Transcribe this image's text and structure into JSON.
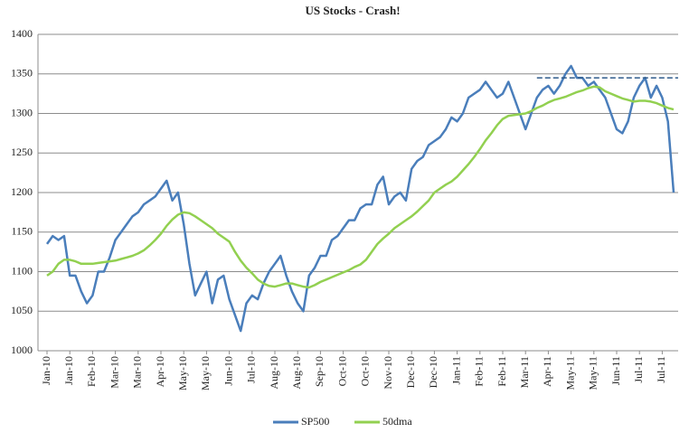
{
  "chart_data": {
    "type": "line",
    "title": "US Stocks  - Crash!",
    "categories": [
      "Jan-10",
      null,
      null,
      null,
      "Jan-10",
      null,
      null,
      null,
      "Feb-10",
      null,
      null,
      null,
      "Mar-10",
      null,
      null,
      null,
      "Mar-10",
      null,
      null,
      null,
      "Apr-10",
      null,
      null,
      null,
      "May-10",
      null,
      null,
      null,
      "May-10",
      null,
      null,
      null,
      "Jun-10",
      null,
      null,
      null,
      "Jul-10",
      null,
      null,
      null,
      "Aug-10",
      null,
      null,
      null,
      "Aug-10",
      null,
      null,
      null,
      "Sep-10",
      null,
      null,
      null,
      "Oct-10",
      null,
      null,
      null,
      "Oct-10",
      null,
      null,
      null,
      "Nov-10",
      null,
      null,
      null,
      "Dec-10",
      null,
      null,
      null,
      "Dec-10",
      null,
      null,
      null,
      "Jan-11",
      null,
      null,
      null,
      "Feb-11",
      null,
      null,
      null,
      "Feb-11",
      null,
      null,
      null,
      "Mar-11",
      null,
      null,
      null,
      "Apr-11",
      null,
      null,
      null,
      "May-11",
      null,
      null,
      null,
      "May-11",
      null,
      null,
      null,
      "Jun-11",
      null,
      null,
      null,
      "Jul-11",
      null,
      null,
      null,
      "Jul-11",
      null,
      null
    ],
    "series": [
      {
        "name": "SP500",
        "color": "#4a7ebb",
        "values": [
          1135,
          1145,
          1140,
          1145,
          1095,
          1095,
          1075,
          1060,
          1070,
          1100,
          1100,
          1118,
          1140,
          1150,
          1160,
          1170,
          1175,
          1185,
          1190,
          1195,
          1205,
          1215,
          1190,
          1200,
          1160,
          1110,
          1070,
          1085,
          1100,
          1060,
          1090,
          1095,
          1065,
          1045,
          1025,
          1060,
          1070,
          1065,
          1085,
          1100,
          1110,
          1120,
          1095,
          1075,
          1060,
          1050,
          1095,
          1105,
          1120,
          1120,
          1140,
          1145,
          1155,
          1165,
          1165,
          1180,
          1185,
          1185,
          1210,
          1220,
          1185,
          1195,
          1200,
          1190,
          1230,
          1240,
          1245,
          1260,
          1265,
          1270,
          1280,
          1295,
          1290,
          1300,
          1320,
          1325,
          1330,
          1340,
          1330,
          1320,
          1325,
          1340,
          1320,
          1300,
          1280,
          1300,
          1320,
          1330,
          1335,
          1325,
          1335,
          1350,
          1360,
          1345,
          1345,
          1335,
          1340,
          1330,
          1320,
          1300,
          1280,
          1275,
          1290,
          1320,
          1335,
          1345,
          1320,
          1335,
          1320,
          1290,
          1200
        ]
      },
      {
        "name": "50dma",
        "color": "#92d050",
        "values": [
          1095,
          1100,
          1110,
          1115,
          1115,
          1113,
          1110,
          1110,
          1110,
          1111,
          1112,
          1113,
          1114,
          1116,
          1118,
          1120,
          1123,
          1127,
          1133,
          1140,
          1148,
          1158,
          1166,
          1172,
          1175,
          1174,
          1170,
          1165,
          1160,
          1155,
          1148,
          1143,
          1138,
          1125,
          1114,
          1105,
          1098,
          1090,
          1085,
          1082,
          1081,
          1083,
          1085,
          1085,
          1083,
          1081,
          1080,
          1083,
          1087,
          1090,
          1093,
          1096,
          1099,
          1102,
          1106,
          1109,
          1115,
          1125,
          1135,
          1142,
          1148,
          1155,
          1160,
          1165,
          1170,
          1176,
          1183,
          1190,
          1200,
          1205,
          1210,
          1214,
          1220,
          1228,
          1236,
          1245,
          1255,
          1266,
          1275,
          1285,
          1293,
          1297,
          1298,
          1299,
          1300,
          1303,
          1307,
          1310,
          1314,
          1317,
          1319,
          1321,
          1324,
          1327,
          1329,
          1332,
          1334,
          1333,
          1328,
          1325,
          1322,
          1319,
          1317,
          1315,
          1316,
          1316,
          1315,
          1313,
          1310,
          1307,
          1305
        ]
      }
    ],
    "ylim": [
      1000,
      1400
    ],
    "yticks": [
      1000,
      1050,
      1100,
      1150,
      1200,
      1250,
      1300,
      1350,
      1400
    ],
    "grid": true,
    "hline": {
      "value": 1345,
      "from": 86,
      "color": "#2e5a8a"
    },
    "legend": "bottom"
  }
}
